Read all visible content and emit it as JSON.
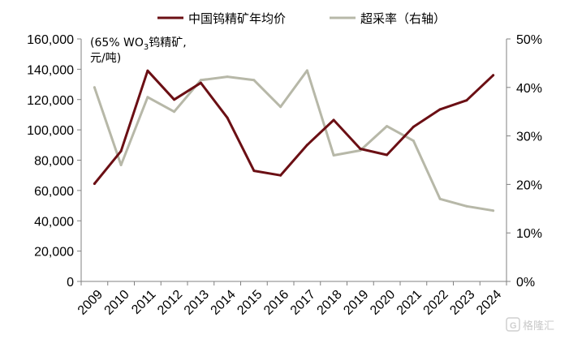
{
  "chart_data": {
    "type": "line",
    "x": [
      "2009",
      "2010",
      "2011",
      "2012",
      "2013",
      "2014",
      "2015",
      "2016",
      "2017",
      "2018",
      "2019",
      "2020",
      "2021",
      "2022",
      "2023",
      "2024"
    ],
    "series": [
      {
        "name": "中国钨精矿年均价",
        "axis": "left",
        "color": "#6b0f14",
        "values": [
          64500,
          86000,
          139000,
          120000,
          131000,
          108000,
          73000,
          70000,
          90000,
          106500,
          87500,
          83500,
          102000,
          113500,
          119500,
          136000
        ]
      },
      {
        "name": "超采率（右轴）",
        "axis": "right",
        "color": "#b7b8a8",
        "values": [
          40,
          24,
          38,
          35,
          41.5,
          42.2,
          41.5,
          36,
          43.5,
          26,
          27,
          32,
          29,
          17,
          15.5,
          14.6
        ]
      }
    ],
    "ylim_left": [
      0,
      160000
    ],
    "ylim_right": [
      0,
      50
    ],
    "yticks_left": [
      "0",
      "20,000",
      "40,000",
      "60,000",
      "80,000",
      "100,000",
      "120,000",
      "140,000",
      "160,000"
    ],
    "yticks_right": [
      "0%",
      "10%",
      "20%",
      "30%",
      "40%",
      "50%"
    ],
    "unit_line1_a": "(65% WO",
    "unit_line1_sub": "3",
    "unit_line1_b": "钨精矿,",
    "unit_line2": "元/吨)",
    "legend_position": "top",
    "grid": false
  },
  "watermark": {
    "text": "格隆汇",
    "icon": "g-logo-icon"
  }
}
